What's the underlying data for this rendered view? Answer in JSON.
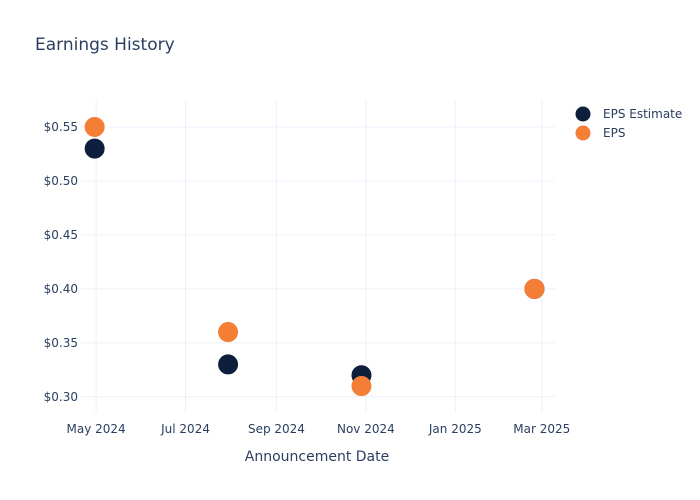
{
  "chart_data": {
    "type": "scatter",
    "title": "Earnings History",
    "xlabel": "Announcement Date",
    "ylabel": "",
    "x_tick_labels": [
      "May 2024",
      "Jul 2024",
      "Sep 2024",
      "Nov 2024",
      "Jan 2025",
      "Mar 2025"
    ],
    "x_ticks": [
      "2024-05-01",
      "2024-07-01",
      "2024-09-01",
      "2024-11-01",
      "2025-01-01",
      "2025-03-01"
    ],
    "xlim": [
      "2024-04-20",
      "2025-03-10"
    ],
    "y_tick_labels": [
      "$0.30",
      "$0.35",
      "$0.40",
      "$0.45",
      "$0.50",
      "$0.55"
    ],
    "y_ticks": [
      0.3,
      0.35,
      0.4,
      0.45,
      0.5,
      0.55
    ],
    "ylim": [
      0.285,
      0.575
    ],
    "grid": true,
    "legend_position": "top-right",
    "series": [
      {
        "name": "EPS Estimate",
        "color": "#0d1f3d",
        "points": [
          {
            "x": "2024-04-30",
            "y": 0.53
          },
          {
            "x": "2024-07-30",
            "y": 0.33
          },
          {
            "x": "2024-10-29",
            "y": 0.32
          },
          {
            "x": "2025-02-24",
            "y": 0.4
          }
        ]
      },
      {
        "name": "EPS",
        "color": "#f47e36",
        "points": [
          {
            "x": "2024-04-30",
            "y": 0.55
          },
          {
            "x": "2024-07-30",
            "y": 0.36
          },
          {
            "x": "2024-10-29",
            "y": 0.31
          },
          {
            "x": "2025-02-24",
            "y": 0.4
          }
        ]
      }
    ]
  }
}
